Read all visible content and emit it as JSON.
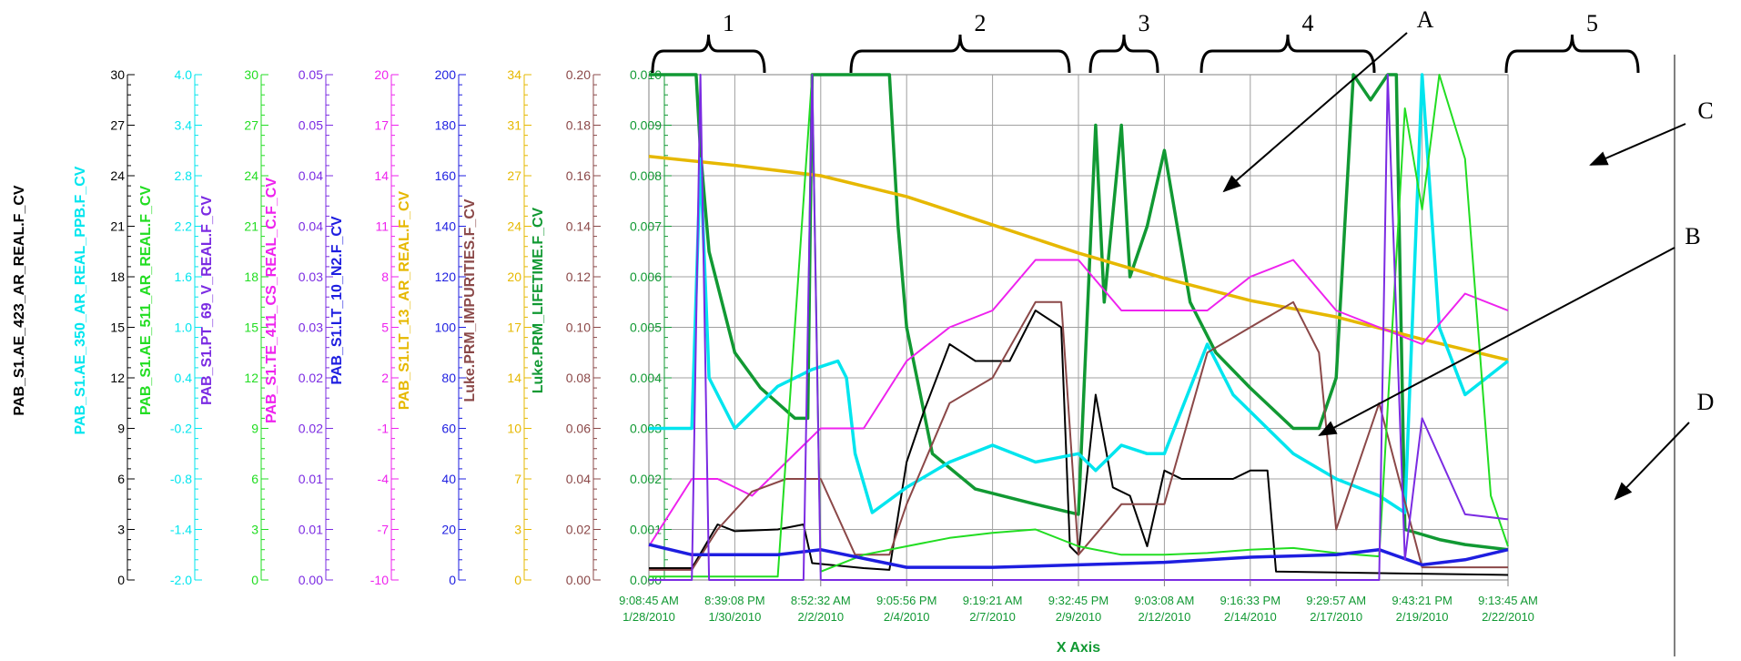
{
  "chart_data": {
    "type": "line",
    "xlabel": "X Axis",
    "x_ticks": [
      {
        "time": "9:08:45 AM",
        "date": "1/28/2010"
      },
      {
        "time": "8:39:08 PM",
        "date": "1/30/2010"
      },
      {
        "time": "8:52:32 AM",
        "date": "2/2/2010"
      },
      {
        "time": "9:05:56 PM",
        "date": "2/4/2010"
      },
      {
        "time": "9:19:21 AM",
        "date": "2/7/2010"
      },
      {
        "time": "9:32:45 PM",
        "date": "2/9/2010"
      },
      {
        "time": "9:03:08 AM",
        "date": "2/12/2010"
      },
      {
        "time": "9:16:33 PM",
        "date": "2/14/2010"
      },
      {
        "time": "9:29:57 AM",
        "date": "2/17/2010"
      },
      {
        "time": "9:43:21 PM",
        "date": "2/19/2010"
      },
      {
        "time": "9:13:45 AM",
        "date": "2/22/2010"
      }
    ],
    "y_axes": [
      {
        "name": "PAB_S1.AE_423_AR_REAL.F_CV",
        "color": "#000000",
        "ticks": [
          "0",
          "3",
          "6",
          "9",
          "12",
          "15",
          "18",
          "21",
          "24",
          "27",
          "30"
        ]
      },
      {
        "name": "PAB_S1.AE_350_AR_REAL_PPB.F_CV",
        "color": "#00e5ee",
        "ticks": [
          "-2.0",
          "-1.4",
          "-0.8",
          "-0.2",
          "0.4",
          "1.0",
          "1.6",
          "2.2",
          "2.8",
          "3.4",
          "4.0"
        ]
      },
      {
        "name": "PAB_S1.AE_511_AR_REAL.F_CV",
        "color": "#22dd22",
        "ticks": [
          "0",
          "3",
          "6",
          "9",
          "12",
          "15",
          "18",
          "21",
          "24",
          "27",
          "30"
        ]
      },
      {
        "name": "PAB_S1.PT_69_V_REAL.F_CV",
        "color": "#7b2be2",
        "ticks": [
          "0.00",
          "0.01",
          "0.01",
          "0.02",
          "0.02",
          "0.03",
          "0.03",
          "0.04",
          "0.04",
          "0.05",
          "0.05"
        ]
      },
      {
        "name": "PAB_S1.TE_411_CS_REAL_C.F_CV",
        "color": "#ee22ee",
        "ticks": [
          "-10",
          "-7",
          "-4",
          "-1",
          "2",
          "5",
          "8",
          "11",
          "14",
          "17",
          "20"
        ]
      },
      {
        "name": "PAB_S1.LT_10_N2.F_CV",
        "color": "#1e1ee0",
        "ticks": [
          "0",
          "20",
          "40",
          "60",
          "80",
          "100",
          "120",
          "140",
          "160",
          "180",
          "200"
        ]
      },
      {
        "name": "PAB_S1.LT_13_AR_REAL.F_CV",
        "color": "#e6b800",
        "ticks": [
          "0",
          "3",
          "7",
          "10",
          "14",
          "17",
          "20",
          "24",
          "27",
          "31",
          "34"
        ]
      },
      {
        "name": "Luke.PRM_IMPURITIES.F_CV",
        "color": "#8b4848",
        "ticks": [
          "0.00",
          "0.02",
          "0.04",
          "0.06",
          "0.08",
          "0.10",
          "0.12",
          "0.14",
          "0.16",
          "0.18",
          "0.20"
        ]
      },
      {
        "name": "Luke.PRM_LIFETIME.F_CV",
        "color": "#119933",
        "ticks": [
          "0.000",
          "0.001",
          "0.002",
          "0.003",
          "0.004",
          "0.005",
          "0.006",
          "0.007",
          "0.008",
          "0.009",
          "0.010"
        ]
      }
    ],
    "series": [
      {
        "name": "Luke.PRM_LIFETIME.F_CV",
        "color": "#119933",
        "x": [
          0,
          0.05,
          0.055,
          0.06,
          0.07,
          0.1,
          0.13,
          0.17,
          0.185,
          0.19,
          0.28,
          0.29,
          0.3,
          0.33,
          0.38,
          0.45,
          0.5,
          0.52,
          0.53,
          0.55,
          0.56,
          0.58,
          0.6,
          0.63,
          0.66,
          0.7,
          0.75,
          0.78,
          0.8,
          0.81,
          0.82,
          0.84,
          0.86,
          0.87,
          0.88,
          0.9,
          0.92,
          0.95,
          1.0
        ],
        "y": [
          0.01,
          0.01,
          0.01,
          0.0085,
          0.0065,
          0.0045,
          0.0038,
          0.0032,
          0.0032,
          0.01,
          0.01,
          0.007,
          0.005,
          0.0025,
          0.0018,
          0.0015,
          0.0013,
          0.009,
          0.0055,
          0.009,
          0.006,
          0.007,
          0.0085,
          0.0055,
          0.0045,
          0.0038,
          0.003,
          0.003,
          0.004,
          0.007,
          0.01,
          0.0095,
          0.01,
          0.01,
          0.001,
          0.0009,
          0.0008,
          0.0007,
          0.0006
        ]
      },
      {
        "name": "PAB_S1.LT_13_AR_REAL.F_CV",
        "color": "#e6b800",
        "x": [
          0,
          0.1,
          0.2,
          0.3,
          0.4,
          0.5,
          0.6,
          0.7,
          0.8,
          0.9,
          1.0
        ],
        "y": [
          28.5,
          27.9,
          27.2,
          25.8,
          23.9,
          22.0,
          20.3,
          18.8,
          17.7,
          16.2,
          14.8
        ]
      },
      {
        "name": "PAB_S1.AE_423_AR_REAL.F_CV",
        "color": "#000000",
        "x": [
          0,
          0.05,
          0.08,
          0.1,
          0.15,
          0.18,
          0.19,
          0.25,
          0.28,
          0.3,
          0.32,
          0.35,
          0.38,
          0.42,
          0.45,
          0.48,
          0.49,
          0.5,
          0.52,
          0.54,
          0.56,
          0.58,
          0.6,
          0.62,
          0.64,
          0.68,
          0.7,
          0.72,
          0.73,
          1.0
        ],
        "y": [
          0.7,
          0.7,
          3.3,
          2.9,
          3.0,
          3.3,
          1.0,
          0.7,
          0.6,
          7.0,
          10.0,
          14.0,
          13.0,
          13.0,
          16.0,
          15.0,
          2.0,
          1.5,
          11.0,
          5.5,
          5.0,
          2.0,
          6.5,
          6.0,
          6.0,
          6.0,
          6.5,
          6.5,
          0.5,
          0.3
        ]
      },
      {
        "name": "PAB_S1.AE_350_AR_REAL_PPB.F_CV",
        "color": "#00e5ee",
        "x": [
          0,
          0.05,
          0.06,
          0.07,
          0.1,
          0.15,
          0.19,
          0.22,
          0.23,
          0.24,
          0.26,
          0.3,
          0.35,
          0.4,
          0.45,
          0.5,
          0.52,
          0.55,
          0.58,
          0.6,
          0.65,
          0.68,
          0.7,
          0.75,
          0.8,
          0.85,
          0.88,
          0.9,
          0.92,
          0.95,
          1.0
        ],
        "y": [
          -0.2,
          -0.2,
          3.0,
          0.4,
          -0.2,
          0.3,
          0.5,
          0.6,
          0.4,
          -0.5,
          -1.2,
          -0.9,
          -0.6,
          -0.4,
          -0.6,
          -0.5,
          -0.7,
          -0.4,
          -0.5,
          -0.5,
          0.8,
          0.2,
          0.0,
          -0.5,
          -0.8,
          -1.0,
          -1.2,
          4.0,
          1.0,
          0.2,
          0.6
        ]
      },
      {
        "name": "PAB_S1.TE_411_CS_REAL_C.F_CV",
        "color": "#ee22ee",
        "x": [
          0,
          0.05,
          0.08,
          0.12,
          0.16,
          0.2,
          0.25,
          0.3,
          0.35,
          0.4,
          0.45,
          0.5,
          0.55,
          0.6,
          0.65,
          0.7,
          0.75,
          0.8,
          0.85,
          0.9,
          0.95,
          1.0
        ],
        "y": [
          -8,
          -4,
          -4,
          -5,
          -3,
          -1,
          -1,
          3,
          5,
          6,
          9,
          9,
          6,
          6,
          6,
          8,
          9,
          6,
          5,
          4,
          7,
          6
        ]
      },
      {
        "name": "Luke.PRM_IMPURITIES.F_CV",
        "color": "#8b4848",
        "x": [
          0,
          0.05,
          0.08,
          0.12,
          0.16,
          0.2,
          0.24,
          0.28,
          0.3,
          0.35,
          0.4,
          0.45,
          0.48,
          0.5,
          0.55,
          0.6,
          0.65,
          0.7,
          0.75,
          0.78,
          0.8,
          0.85,
          0.9,
          0.95,
          1.0
        ],
        "y": [
          0.004,
          0.004,
          0.02,
          0.035,
          0.04,
          0.04,
          0.01,
          0.01,
          0.03,
          0.07,
          0.08,
          0.11,
          0.11,
          0.01,
          0.03,
          0.03,
          0.09,
          0.1,
          0.11,
          0.09,
          0.02,
          0.07,
          0.005,
          0.005,
          0.005
        ]
      },
      {
        "name": "PAB_S1.AE_511_AR_REAL.F_CV",
        "color": "#22dd22",
        "x": [
          0,
          0.15,
          0.19,
          0.2,
          0.25,
          0.3,
          0.35,
          0.4,
          0.45,
          0.5,
          0.55,
          0.6,
          0.65,
          0.7,
          0.75,
          0.8,
          0.85,
          0.88,
          0.9,
          0.92,
          0.95,
          0.98,
          1.0
        ],
        "y": [
          0.2,
          0.2,
          30,
          0.5,
          1.5,
          2.0,
          2.5,
          2.8,
          3.0,
          2.0,
          1.5,
          1.5,
          1.6,
          1.8,
          1.9,
          1.6,
          1.4,
          28,
          22,
          30,
          25,
          5,
          2
        ]
      },
      {
        "name": "PAB_S1.LT_10_N2.F_CV",
        "color": "#1e1ee0",
        "x": [
          0,
          0.05,
          0.1,
          0.15,
          0.2,
          0.3,
          0.4,
          0.5,
          0.6,
          0.7,
          0.8,
          0.85,
          0.9,
          0.95,
          1.0
        ],
        "y": [
          14,
          10,
          10,
          10,
          12,
          5,
          5,
          6,
          7,
          9,
          10,
          12,
          6,
          8,
          12
        ]
      },
      {
        "name": "PAB_S1.PT_69_V_REAL.F_CV",
        "color": "#7b2be2",
        "x": [
          0,
          0.05,
          0.06,
          0.07,
          0.18,
          0.19,
          0.2,
          0.85,
          0.86,
          0.88,
          0.9,
          0.95,
          1.0
        ],
        "y": [
          0.0,
          0.0,
          0.05,
          0.0,
          0.0,
          0.05,
          0.0,
          0.0,
          0.05,
          0.002,
          0.016,
          0.0065,
          0.006
        ]
      }
    ],
    "region_labels": [
      "1",
      "2",
      "3",
      "4",
      "5"
    ],
    "callouts": [
      "A",
      "B",
      "C",
      "D"
    ]
  }
}
